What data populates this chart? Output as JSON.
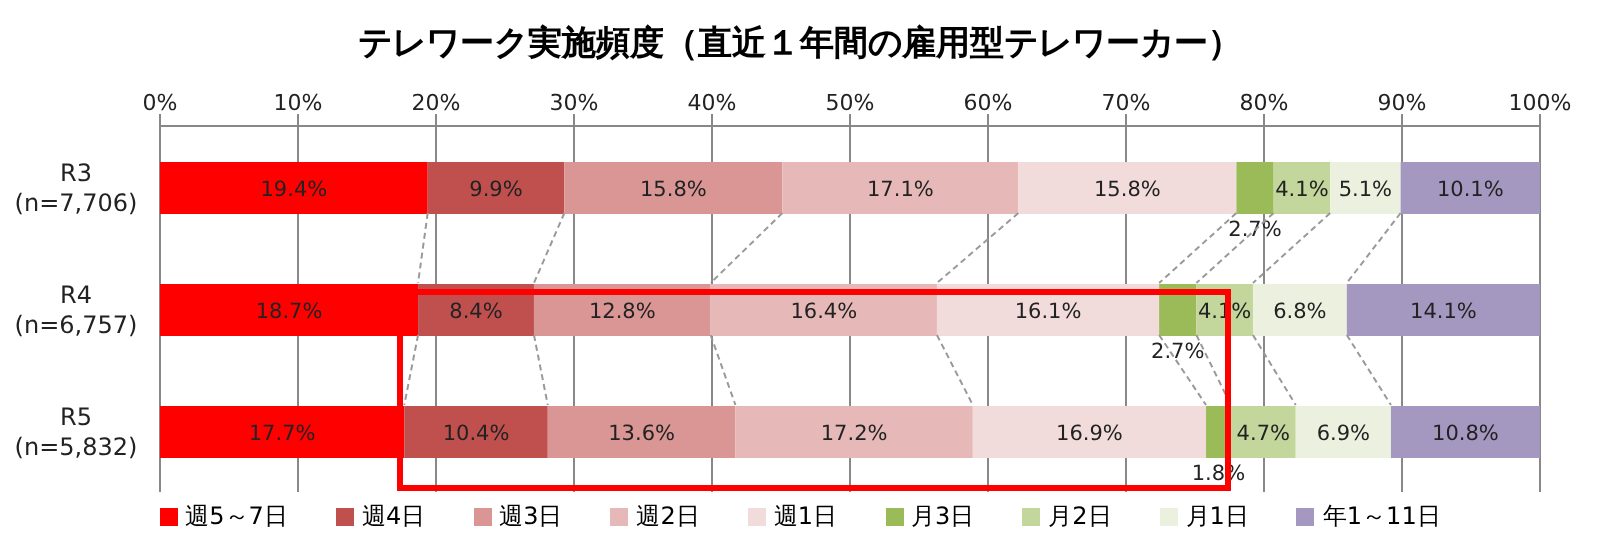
{
  "chart_data": {
    "type": "bar",
    "orientation": "horizontal",
    "stacked": true,
    "title": "テレワーク実施頻度（直近１年間の雇用型テレワーカー）",
    "categories": [
      "R3\n(n=7,706)",
      "R4\n(n=6,757)",
      "R5\n(n=5,832)"
    ],
    "series": [
      {
        "name": "週5～7日",
        "color": "#ff0000",
        "values": [
          19.4,
          18.7,
          17.7
        ],
        "value_labels": [
          "19.4%",
          "18.7%",
          "17.7%"
        ]
      },
      {
        "name": "週4日",
        "color": "#c0504d",
        "values": [
          9.9,
          8.4,
          10.4
        ],
        "value_labels": [
          "9.9%",
          "8.4%",
          "10.4%"
        ]
      },
      {
        "name": "週3日",
        "color": "#d99694",
        "values": [
          15.8,
          12.8,
          13.6
        ],
        "value_labels": [
          "15.8%",
          "12.8%",
          "13.6%"
        ]
      },
      {
        "name": "週2日",
        "color": "#e6b9b8",
        "values": [
          17.1,
          16.4,
          17.2
        ],
        "value_labels": [
          "17.1%",
          "16.4%",
          "17.2%"
        ]
      },
      {
        "name": "週1日",
        "color": "#f2dcdb",
        "values": [
          15.8,
          16.1,
          16.9
        ],
        "value_labels": [
          "15.8%",
          "16.1%",
          "16.9%"
        ]
      },
      {
        "name": "月3日",
        "color": "#9bbb59",
        "values": [
          2.7,
          2.7,
          1.8
        ],
        "value_labels": [
          "2.7%",
          "2.7%",
          "1.8%"
        ]
      },
      {
        "name": "月2日",
        "color": "#c3d69b",
        "values": [
          4.1,
          4.1,
          4.7
        ],
        "value_labels": [
          "4.1%",
          "4.1%",
          "4.7%"
        ]
      },
      {
        "name": "月1日",
        "color": "#ebf1de",
        "values": [
          5.1,
          6.8,
          6.9
        ],
        "value_labels": [
          "5.1%",
          "6.8%",
          "6.9%"
        ]
      },
      {
        "name": "年1～11日",
        "color": "#a497c0",
        "values": [
          10.1,
          14.1,
          10.8
        ],
        "value_labels": [
          "10.1%",
          "14.1%",
          "10.8%"
        ]
      }
    ],
    "xlim": [
      0,
      100
    ],
    "xticks": [
      {
        "value": 0,
        "label": "0%"
      },
      {
        "value": 10,
        "label": "10%"
      },
      {
        "value": 20,
        "label": "20%"
      },
      {
        "value": 30,
        "label": "30%"
      },
      {
        "value": 40,
        "label": "40%"
      },
      {
        "value": 50,
        "label": "50%"
      },
      {
        "value": 60,
        "label": "60%"
      },
      {
        "value": 70,
        "label": "70%"
      },
      {
        "value": 80,
        "label": "80%"
      },
      {
        "value": 90,
        "label": "90%"
      },
      {
        "value": 100,
        "label": "100%"
      }
    ],
    "grid": "x",
    "legend": "bottom"
  }
}
